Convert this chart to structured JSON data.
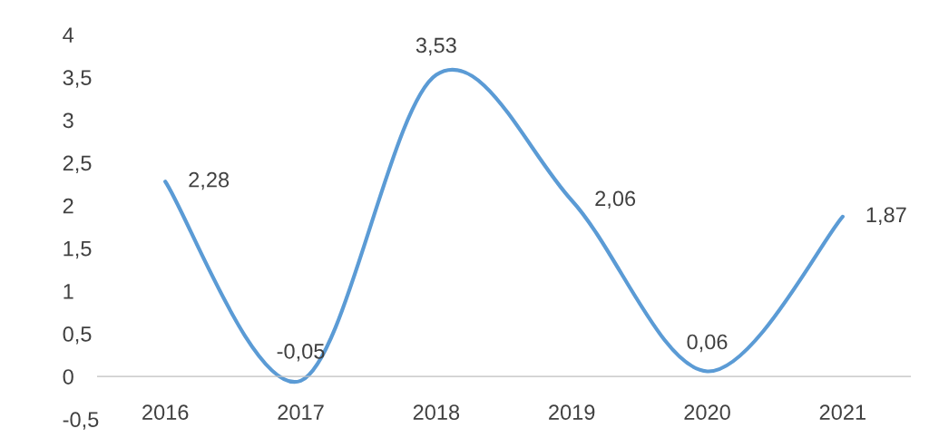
{
  "chart_data": {
    "type": "line",
    "categories": [
      "2016",
      "2017",
      "2018",
      "2019",
      "2020",
      "2021"
    ],
    "series": [
      {
        "color": "#5b9bd5",
        "values": [
          2.28,
          -0.05,
          3.53,
          2.06,
          0.06,
          1.87
        ],
        "value_labels": [
          "2,28",
          "-0,05",
          "3,53",
          "2,06",
          "0,06",
          "1,87"
        ]
      }
    ],
    "ylim": [
      -0.5,
      4
    ],
    "yticks": [
      {
        "value": -0.5,
        "label": "-0,5"
      },
      0,
      {
        "value": 0.5,
        "label": "0,5"
      },
      1,
      {
        "value": 1.5,
        "label": "1,5"
      },
      2,
      {
        "value": 2.5,
        "label": "2,5"
      },
      3,
      {
        "value": 3.5,
        "label": "3,5"
      },
      4
    ],
    "grid": false,
    "legend": false,
    "marker": "none",
    "line_style": "solid"
  }
}
